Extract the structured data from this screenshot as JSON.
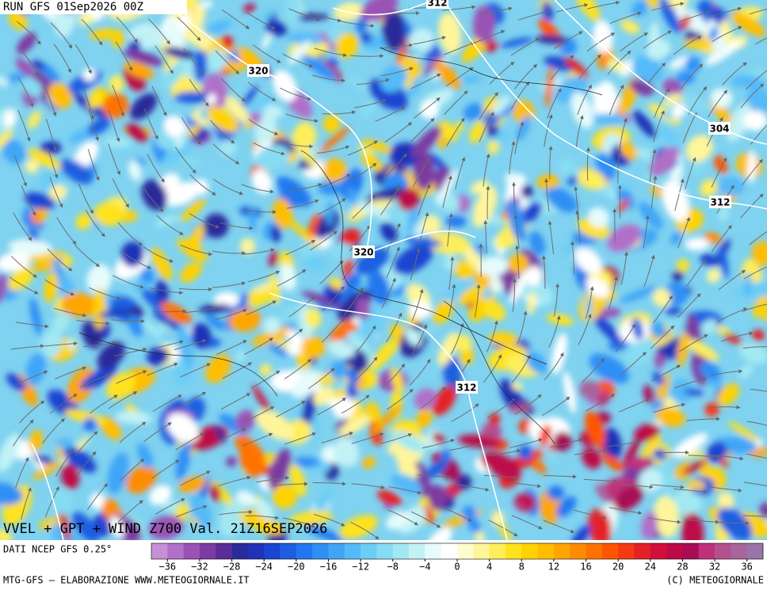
{
  "header": {
    "run": "RUN GFS 01Sep2026 00Z"
  },
  "map": {
    "contour_labels": [
      "312",
      "320",
      "304",
      "312",
      "320",
      "312"
    ]
  },
  "title": "VVEL + GPT + WIND Z700 Val. 21Z16SEP2026",
  "source": "DATI NCEP GFS 0.25°",
  "colorbar": {
    "colors": [
      "#c78fd6",
      "#b070c8",
      "#9a52b4",
      "#7d3aa0",
      "#5a2c96",
      "#2b2a9a",
      "#1f32b8",
      "#1b45d0",
      "#1d5ee0",
      "#2177ee",
      "#2f8ff5",
      "#40a5f7",
      "#55baf8",
      "#6ccdf5",
      "#86dcf2",
      "#a2e8f2",
      "#c3f2f5",
      "#e6fbfb",
      "#ffffff",
      "#fffdd0",
      "#fff59a",
      "#ffee5a",
      "#ffe21c",
      "#ffd200",
      "#ffbd00",
      "#ffa500",
      "#ff8c00",
      "#ff7200",
      "#ff5500",
      "#f43a12",
      "#e42028",
      "#d0103a",
      "#bc0a48",
      "#a80c55",
      "#c0307a",
      "#b4508e",
      "#a8649c",
      "#9a74a8"
    ],
    "min": -38,
    "max": 38,
    "ticks": [
      {
        "value": -36,
        "label": "−36"
      },
      {
        "value": -32,
        "label": "−32"
      },
      {
        "value": -28,
        "label": "−28"
      },
      {
        "value": -24,
        "label": "−24"
      },
      {
        "value": -20,
        "label": "−20"
      },
      {
        "value": -16,
        "label": "−16"
      },
      {
        "value": -12,
        "label": "−12"
      },
      {
        "value": -8,
        "label": "−8"
      },
      {
        "value": -4,
        "label": "−4"
      },
      0,
      4,
      8,
      12,
      16,
      20,
      24,
      28,
      32,
      36
    ]
  },
  "footer": {
    "left": "MTG-GFS – ELABORAZIONE WWW.METEOGIORNALE.IT",
    "right": "(C) METEOGIORNALE"
  }
}
